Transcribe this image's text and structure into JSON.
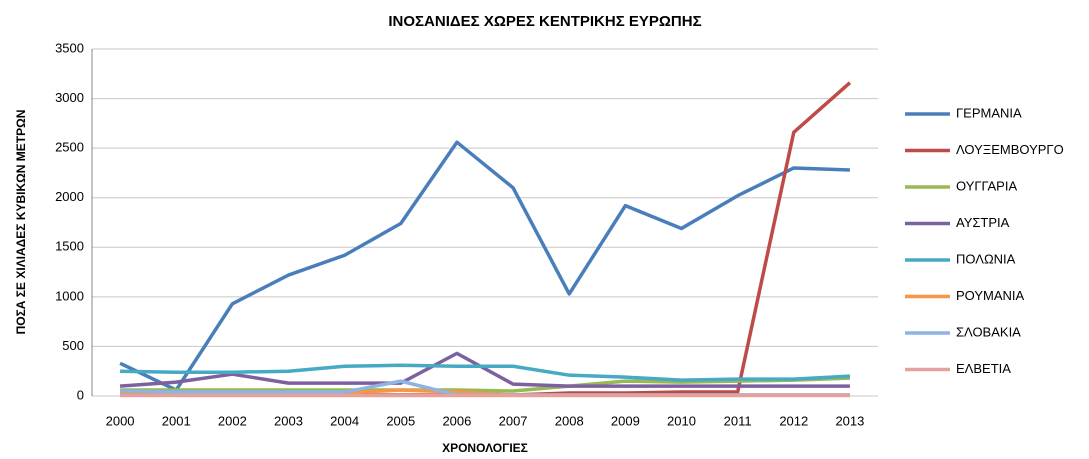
{
  "chart_data": {
    "type": "line",
    "title": "ΙΝΟΣΑΝΙΔΕΣ ΧΩΡΕΣ ΚΕΝΤΡΙΚΗΣ ΕΥΡΩΠΗΣ",
    "x_label": "ΧΡΟΝΟΛΟΓΙΕΣ",
    "y_label": "ΠΟΣΑ ΣΕ ΧΙΛΙΑΔΕΣ ΚΥΒΙΚΩΝ ΜΕΤΡΩΝ",
    "categories": [
      "2000",
      "2001",
      "2002",
      "2003",
      "2004",
      "2005",
      "2006",
      "2007",
      "2008",
      "2009",
      "2010",
      "2011",
      "2012",
      "2013"
    ],
    "ylim": [
      0,
      3500
    ],
    "yticks": [
      0,
      500,
      1000,
      1500,
      2000,
      2500,
      3000,
      3500
    ],
    "grid": true,
    "legend": "right",
    "series": [
      {
        "name": "ΓΕΡΜΑΝΙΑ",
        "color": "#4a7ebb",
        "values": [
          330,
          60,
          930,
          1220,
          1420,
          1740,
          2560,
          2100,
          1030,
          1920,
          1690,
          2020,
          2300,
          2280
        ]
      },
      {
        "name": "ΛΟΥΞΕΜΒΟΥΡΓΟ",
        "color": "#be4b48",
        "values": [
          10,
          10,
          10,
          10,
          10,
          10,
          10,
          10,
          30,
          30,
          40,
          40,
          2660,
          3160
        ]
      },
      {
        "name": "ΟΥΓΓΑΡΙΑ",
        "color": "#98b954",
        "values": [
          60,
          60,
          60,
          60,
          60,
          60,
          60,
          50,
          100,
          150,
          140,
          150,
          160,
          180
        ]
      },
      {
        "name": "ΑΥΣΤΡΙΑ",
        "color": "#7d60a0",
        "values": [
          100,
          140,
          220,
          130,
          130,
          130,
          430,
          120,
          100,
          100,
          100,
          100,
          100,
          100
        ]
      },
      {
        "name": "ΠΟΛΩΝΙΑ",
        "color": "#46aac5",
        "values": [
          250,
          240,
          240,
          250,
          300,
          310,
          300,
          300,
          210,
          190,
          160,
          170,
          170,
          200
        ]
      },
      {
        "name": "ΡΟΥΜΑΝΙΑ",
        "color": "#f79646",
        "values": [
          20,
          20,
          20,
          30,
          30,
          60,
          40,
          10,
          10,
          10,
          10,
          10,
          10,
          10
        ]
      },
      {
        "name": "ΣΛΟΒΑΚΙΑ",
        "color": "#8eb4e3",
        "values": [
          50,
          40,
          40,
          40,
          40,
          150,
          10,
          10,
          10,
          10,
          10,
          10,
          10,
          10
        ]
      },
      {
        "name": "ΕΛΒΕΤΙΑ",
        "color": "#e6a19e",
        "values": [
          5,
          5,
          5,
          5,
          5,
          5,
          5,
          5,
          5,
          5,
          5,
          5,
          5,
          5
        ]
      }
    ]
  }
}
